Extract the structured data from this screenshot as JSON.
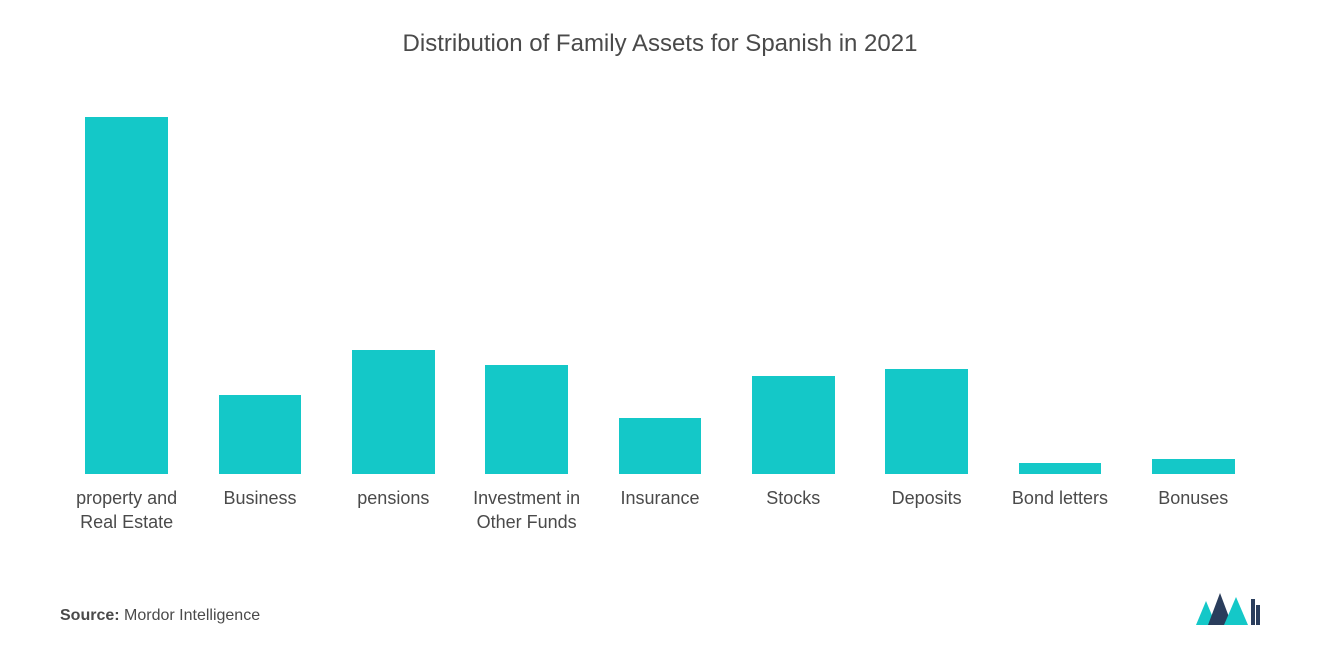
{
  "chart": {
    "type": "bar",
    "title": "Distribution of Family Assets for Spanish in 2021",
    "title_fontsize": 24,
    "title_color": "#4a4a4a",
    "background_color": "#ffffff",
    "bar_color": "#14c8c8",
    "label_fontsize": 18,
    "label_color": "#4a4a4a",
    "bar_width_ratio": 0.62,
    "y_max": 100,
    "categories": [
      "property and Real Estate",
      "Business",
      "pensions",
      "Investment in Other Funds",
      "Insurance",
      "Stocks",
      "Deposits",
      "Bond letters",
      "Bonuses"
    ],
    "values": [
      95,
      21,
      33,
      29,
      15,
      26,
      28,
      3,
      4
    ]
  },
  "footer": {
    "source_label": "Source:",
    "source_value": "Mordor Intelligence",
    "logo_colors": {
      "primary": "#14c8c8",
      "secondary": "#2a3d5c"
    }
  }
}
